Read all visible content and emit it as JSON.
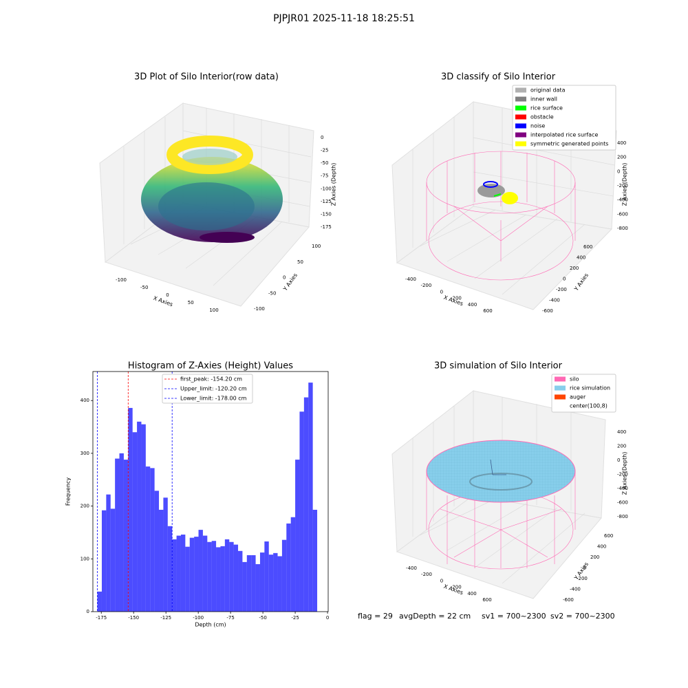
{
  "title": "PJPJR01 2025-11-18 18:25:51",
  "chart_data": [
    {
      "type": "scatter3d",
      "title": "3D Plot of Silo Interior(row data)",
      "xlabel": "X Axies",
      "ylabel": "Y Axies",
      "zlabel": "Z Axies (Depth)",
      "xticks": [
        -100,
        -50,
        0,
        50,
        100
      ],
      "yticks": [
        -100,
        -50,
        0,
        50,
        100
      ],
      "zticks": [
        0,
        -25,
        -50,
        -75,
        -100,
        -125,
        -150,
        -175
      ]
    },
    {
      "type": "classify3d",
      "title": "3D classify of Silo Interior",
      "xlabel": "X Axies",
      "ylabel": "Y Axies",
      "zlabel": "Z Axies (Depth)",
      "xticks": [
        -400,
        -200,
        0,
        200,
        400,
        600
      ],
      "yticks": [
        -600,
        -400,
        -200,
        0,
        200,
        400,
        600
      ],
      "zticks": [
        400,
        200,
        0,
        -200,
        -400,
        -600,
        -800
      ],
      "series": [
        {
          "name": "original data",
          "color": "#b0b0b0"
        },
        {
          "name": "inner wall",
          "color": "#808080"
        },
        {
          "name": "rice surface",
          "color": "#00ff00"
        },
        {
          "name": "obstacle",
          "color": "#ff0000"
        },
        {
          "name": "noise",
          "color": "#0000ff"
        },
        {
          "name": "interpolated rice surface",
          "color": "#800080"
        },
        {
          "name": "symmetric generated points",
          "color": "#ffff00"
        }
      ]
    },
    {
      "type": "histogram",
      "title": "Histogram of Z-Axies (Height) Values",
      "xlabel": "Depth (cm)",
      "ylabel": "Frequency",
      "color": "#0000ff",
      "bins": [
        -178,
        -174.6,
        -171.2,
        -167.8,
        -164.4,
        -161,
        -157.6,
        -154.2,
        -150.8,
        -147.4,
        -144,
        -140.6,
        -137.2,
        -133.8,
        -130.4,
        -127,
        -123.6,
        -120.2,
        -116.8,
        -113.4,
        -110,
        -106.6,
        -103.2,
        -99.8,
        -96.4,
        -93,
        -89.6,
        -86.2,
        -82.8,
        -79.4,
        -76,
        -72.6,
        -69.2,
        -65.8,
        -62.4,
        -59,
        -55.6,
        -52.2,
        -48.8,
        -45.4,
        -42,
        -38.6,
        -35.2,
        -31.8,
        -28.4,
        -25,
        -21.6,
        -18.2,
        -14.8,
        -11.4,
        -8
      ],
      "counts": [
        38,
        192,
        222,
        195,
        290,
        300,
        288,
        386,
        340,
        360,
        355,
        275,
        272,
        229,
        193,
        216,
        162,
        137,
        144,
        146,
        123,
        140,
        142,
        155,
        144,
        132,
        134,
        122,
        124,
        137,
        132,
        127,
        115,
        94,
        107,
        107,
        90,
        112,
        133,
        108,
        111,
        105,
        136,
        167,
        179,
        288,
        379,
        406,
        434,
        193
      ],
      "xlim": [
        -181.5,
        0.5
      ],
      "ylim": [
        0,
        455
      ],
      "xticks": [
        -175,
        -150,
        -125,
        -100,
        -75,
        -50,
        -25,
        0
      ],
      "yticks": [
        0,
        100,
        200,
        300,
        400
      ],
      "lines": [
        {
          "name": "first_peak: -154.20 cm",
          "value": -154.2,
          "color": "#ff0000"
        },
        {
          "name": "Upper_limit: -120.20 cm",
          "value": -120.2,
          "color": "#0000ff"
        },
        {
          "name": "Lower_limit: -178.00 cm",
          "value": -178,
          "color": "#0000ff"
        }
      ]
    },
    {
      "type": "simulation3d",
      "title": "3D simulation of Silo Interior",
      "xlabel": "X Axies",
      "ylabel": "Y Axies",
      "zlabel": "Z Axies (Depth)",
      "xticks": [
        -400,
        -200,
        0,
        200,
        400,
        600
      ],
      "yticks": [
        -600,
        -400,
        -200,
        0,
        200,
        400,
        600
      ],
      "zticks": [
        400,
        200,
        0,
        -200,
        -400,
        -600,
        -800
      ],
      "series": [
        {
          "name": "silo",
          "color": "#ff69b4"
        },
        {
          "name": "rice simulation",
          "color": "#87ceeb"
        },
        {
          "name": "auger",
          "color": "#ff4500"
        },
        {
          "name": "center(100,8)",
          "color": "#ffffff"
        }
      ]
    }
  ],
  "footer": [
    "flag = 29",
    "avgDepth = 22 cm",
    "sv1 = 700~2300",
    "sv2 = 700~2300"
  ]
}
